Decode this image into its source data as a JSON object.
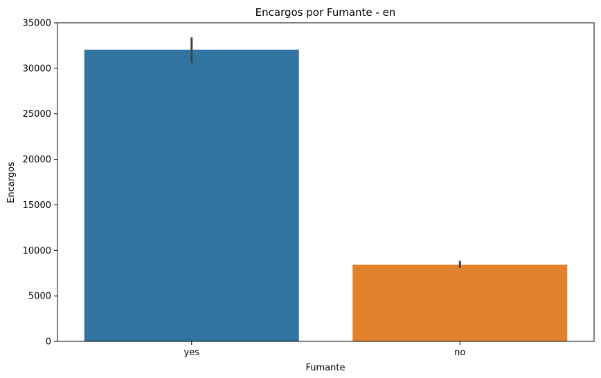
{
  "chart_data": {
    "type": "bar",
    "title": "Encargos por Fumante - en",
    "xlabel": "Fumante",
    "ylabel": "Encargos",
    "categories": [
      "yes",
      "no"
    ],
    "values": [
      32050,
      8434
    ],
    "error_bars": [
      [
        30600,
        33400
      ],
      [
        8050,
        8850
      ]
    ],
    "colors": [
      "#3274a1",
      "#e1812c"
    ],
    "error_bar_color": "#424242",
    "ylim": [
      0,
      35000
    ],
    "yticks": [
      0,
      5000,
      10000,
      15000,
      20000,
      25000,
      30000,
      35000
    ],
    "grid": false,
    "legend": "none"
  }
}
